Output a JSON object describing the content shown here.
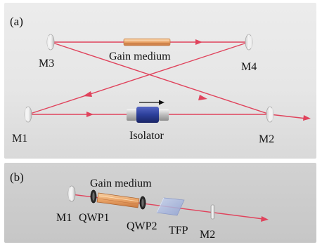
{
  "panel_a": {
    "tag": "(a)",
    "labels": {
      "m1": "M1",
      "m2": "M2",
      "m3": "M3",
      "m4": "M4",
      "gain": "Gain medium",
      "isolator": "Isolator"
    }
  },
  "panel_b": {
    "tag": "(b)",
    "labels": {
      "gain": "Gain medium",
      "m1": "M1",
      "qwp1": "QWP1",
      "qwp2": "QWP2",
      "tfp": "TFP",
      "m2": "M2"
    }
  },
  "colors": {
    "beam": "#e0435c",
    "gain": "#e8a266",
    "isolator": "#2c3f9a",
    "mirror": "#e4e4e4"
  }
}
